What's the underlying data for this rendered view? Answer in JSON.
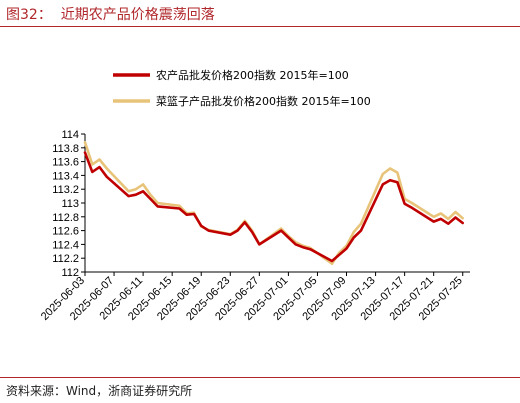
{
  "figure_title": "图32：  近期农产品价格震荡回落",
  "source_note": "资料来源：Wind，浙商证券研究所",
  "colors": {
    "series1": "#c00000",
    "series2": "#e8c47a"
  },
  "chart_data": {
    "type": "line",
    "title": "",
    "xlabel": "",
    "ylabel": "",
    "ylim": [
      112,
      114
    ],
    "yticks": [
      "112",
      "112.2",
      "112.4",
      "112.6",
      "112.8",
      "113",
      "113.2",
      "113.4",
      "113.6",
      "113.8",
      "114"
    ],
    "xlim": [
      "2025-06-03",
      "2025-07-26"
    ],
    "xticks": [
      "2025-06-03",
      "2025-06-07",
      "2025-06-11",
      "2025-06-15",
      "2025-06-19",
      "2025-06-23",
      "2025-06-27",
      "2025-07-01",
      "2025-07-05",
      "2025-07-09",
      "2025-07-13",
      "2025-07-17",
      "2025-07-21",
      "2025-07-25"
    ],
    "grid": false,
    "legend_position": "top",
    "series": [
      {
        "name": "农产品批发价格200指数 2015年=100",
        "x": [
          "2025-06-03",
          "2025-06-04",
          "2025-06-05",
          "2025-06-06",
          "2025-06-09",
          "2025-06-10",
          "2025-06-11",
          "2025-06-12",
          "2025-06-13",
          "2025-06-16",
          "2025-06-17",
          "2025-06-18",
          "2025-06-19",
          "2025-06-20",
          "2025-06-23",
          "2025-06-24",
          "2025-06-25",
          "2025-06-26",
          "2025-06-27",
          "2025-06-30",
          "2025-07-01",
          "2025-07-02",
          "2025-07-03",
          "2025-07-04",
          "2025-07-07",
          "2025-07-08",
          "2025-07-09",
          "2025-07-10",
          "2025-07-11",
          "2025-07-14",
          "2025-07-15",
          "2025-07-16",
          "2025-07-17",
          "2025-07-18",
          "2025-07-21",
          "2025-07-22",
          "2025-07-23",
          "2025-07-24",
          "2025-07-25"
        ],
        "values": [
          113.73,
          113.45,
          113.52,
          113.38,
          113.1,
          113.12,
          113.17,
          113.06,
          112.95,
          112.92,
          112.83,
          112.84,
          112.67,
          112.6,
          112.54,
          112.6,
          112.72,
          112.58,
          112.4,
          112.6,
          112.5,
          112.4,
          112.36,
          112.33,
          112.16,
          112.25,
          112.34,
          112.5,
          112.6,
          113.27,
          113.33,
          113.3,
          112.99,
          112.93,
          112.73,
          112.77,
          112.7,
          112.79,
          112.71
        ]
      },
      {
        "name": "菜篮子产品批发价格200指数 2015年=100",
        "x": [
          "2025-06-03",
          "2025-06-04",
          "2025-06-05",
          "2025-06-06",
          "2025-06-09",
          "2025-06-10",
          "2025-06-11",
          "2025-06-12",
          "2025-06-13",
          "2025-06-16",
          "2025-06-17",
          "2025-06-18",
          "2025-06-19",
          "2025-06-20",
          "2025-06-23",
          "2025-06-24",
          "2025-06-25",
          "2025-06-26",
          "2025-06-27",
          "2025-06-30",
          "2025-07-01",
          "2025-07-02",
          "2025-07-03",
          "2025-07-04",
          "2025-07-07",
          "2025-07-08",
          "2025-07-09",
          "2025-07-10",
          "2025-07-11",
          "2025-07-14",
          "2025-07-15",
          "2025-07-16",
          "2025-07-17",
          "2025-07-18",
          "2025-07-21",
          "2025-07-22",
          "2025-07-23",
          "2025-07-24",
          "2025-07-25"
        ],
        "values": [
          113.88,
          113.56,
          113.63,
          113.5,
          113.17,
          113.2,
          113.27,
          113.12,
          113.0,
          112.96,
          112.85,
          112.86,
          112.66,
          112.61,
          112.55,
          112.61,
          112.74,
          112.6,
          112.4,
          112.63,
          112.52,
          112.43,
          112.38,
          112.35,
          112.12,
          112.28,
          112.38,
          112.58,
          112.7,
          113.42,
          113.5,
          113.44,
          113.06,
          113.0,
          112.8,
          112.85,
          112.77,
          112.87,
          112.78
        ]
      }
    ]
  }
}
